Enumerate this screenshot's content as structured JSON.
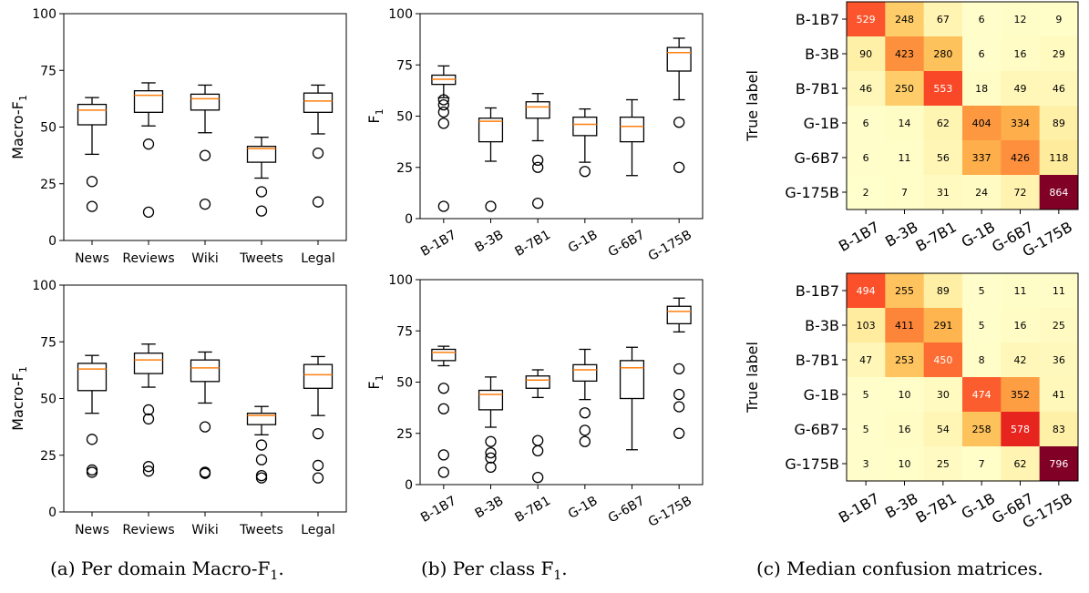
{
  "chart_data": [
    {
      "type": "box",
      "id": "domain_top",
      "ylabel": "Macro-F1",
      "ylim": [
        0,
        100
      ],
      "yticks": [
        0,
        25,
        50,
        75,
        100
      ],
      "categories": [
        "News",
        "Reviews",
        "Wiki",
        "Tweets",
        "Legal"
      ],
      "boxes": [
        {
          "whislo": 38,
          "q1": 51,
          "med": 57.5,
          "q3": 60,
          "whishi": 63,
          "fliers": [
            26,
            15
          ]
        },
        {
          "whislo": 50.5,
          "q1": 56.5,
          "med": 64,
          "q3": 66,
          "whishi": 69.5,
          "fliers": [
            42.5,
            12.5
          ]
        },
        {
          "whislo": 47.5,
          "q1": 57.5,
          "med": 62.5,
          "q3": 64.5,
          "whishi": 68.5,
          "fliers": [
            37.5,
            16
          ]
        },
        {
          "whislo": 27.5,
          "q1": 34.5,
          "med": 40.5,
          "q3": 41.5,
          "whishi": 45.5,
          "fliers": [
            21.5,
            13
          ]
        },
        {
          "whislo": 47,
          "q1": 56.5,
          "med": 61.5,
          "q3": 65,
          "whishi": 68.5,
          "fliers": [
            38.5,
            17
          ]
        }
      ]
    },
    {
      "type": "box",
      "id": "domain_bottom",
      "ylabel": "Macro-F1",
      "ylim": [
        0,
        100
      ],
      "yticks": [
        0,
        25,
        50,
        75,
        100
      ],
      "categories": [
        "News",
        "Reviews",
        "Wiki",
        "Tweets",
        "Legal"
      ],
      "boxes": [
        {
          "whislo": 43.5,
          "q1": 53.5,
          "med": 63,
          "q3": 65.5,
          "whishi": 69,
          "fliers": [
            32,
            18.5,
            17.5
          ]
        },
        {
          "whislo": 55,
          "q1": 61,
          "med": 67,
          "q3": 70,
          "whishi": 74,
          "fliers": [
            45,
            41,
            20,
            18
          ]
        },
        {
          "whislo": 48,
          "q1": 57.5,
          "med": 63.5,
          "q3": 67,
          "whishi": 70.5,
          "fliers": [
            37.5,
            17.5,
            17
          ]
        },
        {
          "whislo": 34,
          "q1": 38.5,
          "med": 42.5,
          "q3": 43.5,
          "whishi": 46.5,
          "fliers": [
            29.5,
            23,
            16,
            15
          ]
        },
        {
          "whislo": 42.5,
          "q1": 54.5,
          "med": 60.5,
          "q3": 65,
          "whishi": 68.5,
          "fliers": [
            34.5,
            20.5,
            15
          ]
        }
      ]
    },
    {
      "type": "box",
      "id": "class_top",
      "ylabel": "F1",
      "ylim": [
        0,
        100
      ],
      "yticks": [
        0,
        25,
        50,
        75,
        100
      ],
      "categories": [
        "B-1B7",
        "B-3B",
        "B-7B1",
        "G-1B",
        "G-6B7",
        "G-175B"
      ],
      "boxes": [
        {
          "whislo": 59,
          "q1": 65.5,
          "med": 68,
          "q3": 70,
          "whishi": 74.5,
          "fliers": [
            58,
            55.5,
            52,
            46.5,
            6
          ]
        },
        {
          "whislo": 28,
          "q1": 37.5,
          "med": 47.5,
          "q3": 49,
          "whishi": 54,
          "fliers": [
            6
          ]
        },
        {
          "whislo": 38,
          "q1": 49,
          "med": 54.5,
          "q3": 57,
          "whishi": 61,
          "fliers": [
            28.5,
            25,
            7.5
          ]
        },
        {
          "whislo": 27.5,
          "q1": 40.5,
          "med": 46,
          "q3": 49.5,
          "whishi": 53.5,
          "fliers": [
            23
          ]
        },
        {
          "whislo": 21,
          "q1": 37.5,
          "med": 45,
          "q3": 49.5,
          "whishi": 58,
          "fliers": []
        },
        {
          "whislo": 58,
          "q1": 72,
          "med": 81,
          "q3": 83.5,
          "whishi": 88,
          "fliers": [
            47,
            25
          ]
        }
      ]
    },
    {
      "type": "box",
      "id": "class_bottom",
      "ylabel": "F1",
      "ylim": [
        0,
        100
      ],
      "yticks": [
        0,
        25,
        50,
        75,
        100
      ],
      "categories": [
        "B-1B7",
        "B-3B",
        "B-7B1",
        "G-1B",
        "G-6B7",
        "G-175B"
      ],
      "boxes": [
        {
          "whislo": 58,
          "q1": 60.5,
          "med": 64.5,
          "q3": 66,
          "whishi": 67.5,
          "fliers": [
            47,
            37,
            14.5,
            6
          ]
        },
        {
          "whislo": 28,
          "q1": 36.5,
          "med": 44,
          "q3": 46,
          "whishi": 52.5,
          "fliers": [
            21,
            15.5,
            13,
            8.5
          ]
        },
        {
          "whislo": 42.5,
          "q1": 47,
          "med": 51,
          "q3": 53,
          "whishi": 56,
          "fliers": [
            21.5,
            16.5,
            3.5
          ]
        },
        {
          "whislo": 41.5,
          "q1": 50.5,
          "med": 56,
          "q3": 58.5,
          "whishi": 66,
          "fliers": [
            35,
            26.5,
            21
          ]
        },
        {
          "whislo": 17,
          "q1": 42,
          "med": 57,
          "q3": 60.5,
          "whishi": 67,
          "fliers": []
        },
        {
          "whislo": 74.5,
          "q1": 78.5,
          "med": 84.5,
          "q3": 87,
          "whishi": 91,
          "fliers": [
            56.5,
            44,
            38,
            25
          ]
        }
      ]
    },
    {
      "type": "heatmap",
      "id": "cm_top",
      "ylabel": "True label",
      "rows": [
        "B-1B7",
        "B-3B",
        "B-7B1",
        "G-1B",
        "G-6B7",
        "G-175B"
      ],
      "cols": [
        "B-1B7",
        "B-3B",
        "B-7B1",
        "G-1B",
        "G-6B7",
        "G-175B"
      ],
      "values": [
        [
          529,
          248,
          67,
          6,
          12,
          9
        ],
        [
          90,
          423,
          280,
          6,
          16,
          29
        ],
        [
          46,
          250,
          553,
          18,
          49,
          46
        ],
        [
          6,
          14,
          62,
          404,
          334,
          89
        ],
        [
          6,
          11,
          56,
          337,
          426,
          118
        ],
        [
          2,
          7,
          31,
          24,
          72,
          864
        ]
      ],
      "colormap": "YlOrRd"
    },
    {
      "type": "heatmap",
      "id": "cm_bottom",
      "ylabel": "True label",
      "rows": [
        "B-1B7",
        "B-3B",
        "B-7B1",
        "G-1B",
        "G-6B7",
        "G-175B"
      ],
      "cols": [
        "B-1B7",
        "B-3B",
        "B-7B1",
        "G-1B",
        "G-6B7",
        "G-175B"
      ],
      "values": [
        [
          494,
          255,
          89,
          5,
          11,
          11
        ],
        [
          103,
          411,
          291,
          5,
          16,
          25
        ],
        [
          47,
          253,
          450,
          8,
          42,
          36
        ],
        [
          5,
          10,
          30,
          474,
          352,
          41
        ],
        [
          5,
          16,
          54,
          258,
          578,
          83
        ],
        [
          3,
          10,
          25,
          7,
          62,
          796
        ]
      ],
      "colormap": "YlOrRd"
    }
  ],
  "captions": {
    "a": {
      "label": "(a) Per domain Macro-F",
      "sub": "1",
      "tail": "."
    },
    "b": {
      "label": "(b) Per class F",
      "sub": "1",
      "tail": "."
    },
    "c": {
      "label": "(c) Median confusion matrices.",
      "sub": "",
      "tail": ""
    }
  },
  "style": {
    "box_color": "#000000",
    "median_color": "#ff7f0e"
  }
}
